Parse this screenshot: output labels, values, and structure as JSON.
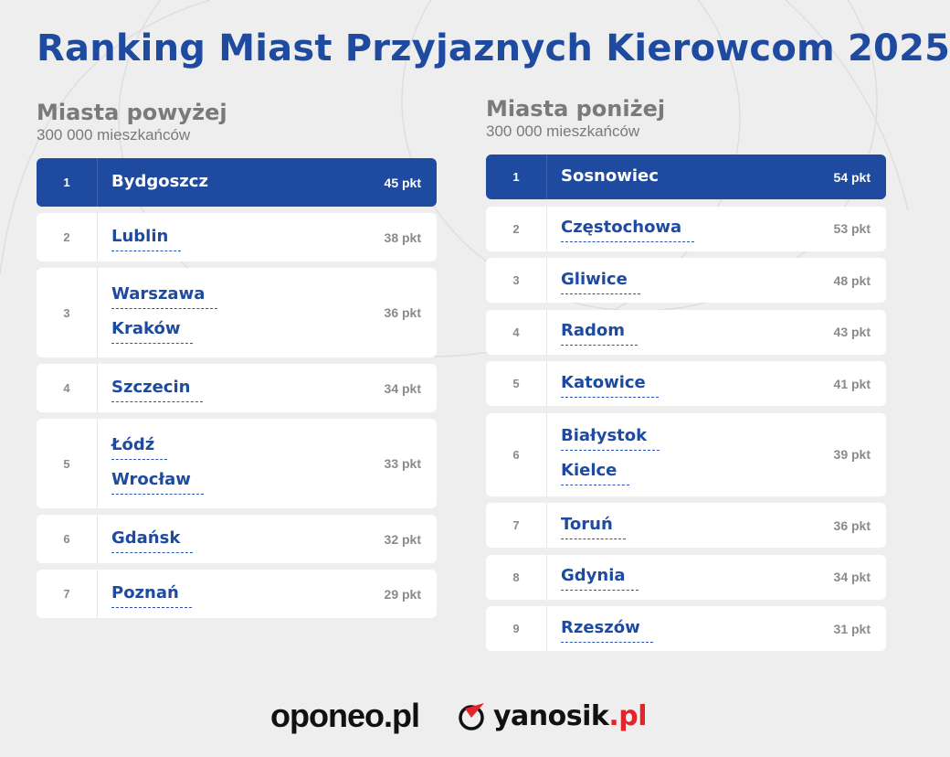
{
  "title": "Ranking Miast Przyjaznych Kierowcom 2025",
  "left": {
    "heading": "Miasta powyżej",
    "subheading": "300 000 mieszkańców",
    "rows": [
      {
        "rank": "1",
        "cities": [
          "Bydgoszcz"
        ],
        "points": "45 pkt",
        "highlighted": true
      },
      {
        "rank": "2",
        "cities": [
          "Lublin"
        ],
        "points": "38 pkt"
      },
      {
        "rank": "3",
        "cities": [
          "Warszawa",
          "Kraków"
        ],
        "points": "36 pkt"
      },
      {
        "rank": "4",
        "cities": [
          "Szczecin"
        ],
        "points": "34 pkt"
      },
      {
        "rank": "5",
        "cities": [
          "Łódź",
          "Wrocław"
        ],
        "points": "33 pkt"
      },
      {
        "rank": "6",
        "cities": [
          "Gdańsk"
        ],
        "points": "32 pkt"
      },
      {
        "rank": "7",
        "cities": [
          "Poznań"
        ],
        "points": "29 pkt"
      }
    ]
  },
  "right": {
    "heading": "Miasta poniżej",
    "subheading": "300 000 mieszkańców",
    "rows": [
      {
        "rank": "1",
        "cities": [
          "Sosnowiec"
        ],
        "points": "54 pkt",
        "highlighted": true
      },
      {
        "rank": "2",
        "cities": [
          "Częstochowa"
        ],
        "points": "53 pkt"
      },
      {
        "rank": "3",
        "cities": [
          "Gliwice"
        ],
        "points": "48 pkt"
      },
      {
        "rank": "4",
        "cities": [
          "Radom"
        ],
        "points": "43 pkt"
      },
      {
        "rank": "5",
        "cities": [
          "Katowice"
        ],
        "points": "41 pkt"
      },
      {
        "rank": "6",
        "cities": [
          "Białystok",
          "Kielce"
        ],
        "points": "39 pkt"
      },
      {
        "rank": "7",
        "cities": [
          "Toruń"
        ],
        "points": "36 pkt"
      },
      {
        "rank": "8",
        "cities": [
          "Gdynia"
        ],
        "points": "34 pkt"
      },
      {
        "rank": "9",
        "cities": [
          "Rzeszów"
        ],
        "points": "31 pkt"
      }
    ]
  },
  "logos": {
    "oponeo": "oponeo.pl",
    "yanosik_name": "yanosik",
    "yanosik_domain": ".pl",
    "yanosik_icon": "yanosik-logo-icon"
  },
  "colors": {
    "accent": "#1e4aa0",
    "background": "#eeeeee",
    "row": "#ffffff",
    "muted_text": "#7a7a7a",
    "brand_red": "#e3242b"
  }
}
